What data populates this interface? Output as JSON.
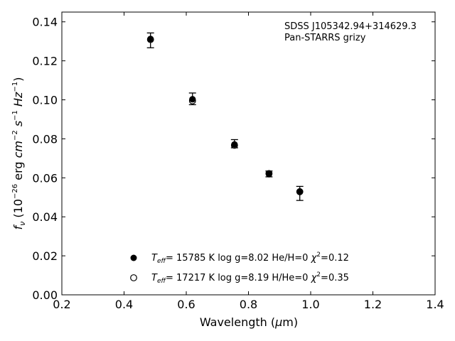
{
  "chart_data": {
    "type": "scatter",
    "xlabel": "Wavelength (μm)",
    "ylabel": "f_ν (10^-26 erg cm^-2 s^-1 Hz^-1)",
    "xlim": [
      0.2,
      1.4
    ],
    "ylim": [
      0.0,
      0.145
    ],
    "xticks": [
      "0.2",
      "0.4",
      "0.6",
      "0.8",
      "1.0",
      "1.2",
      "1.4"
    ],
    "yticks": [
      "0.00",
      "0.02",
      "0.04",
      "0.06",
      "0.08",
      "0.10",
      "0.12",
      "0.14"
    ],
    "annotation": [
      "SDSS J105342.94+314629.3",
      "Pan-STARRS grizy"
    ],
    "observed": {
      "x": [
        0.485,
        0.62,
        0.755,
        0.866,
        0.965
      ],
      "y": [
        0.1305,
        0.1005,
        0.0775,
        0.062,
        0.052
      ],
      "err": [
        0.0038,
        0.003,
        0.0021,
        0.0015,
        0.0036
      ]
    },
    "series": [
      {
        "name": "T_eff= 15785 K  log g=8.02  He/H=0  χ²=0.12",
        "marker": "filled-circle",
        "x": [
          0.485,
          0.62,
          0.755,
          0.866,
          0.965
        ],
        "y": [
          0.1312,
          0.1003,
          0.0771,
          0.0619,
          0.0528
        ]
      },
      {
        "name": "T_eff= 17217 K  log g=8.19  H/He=0  χ²=0.35",
        "marker": "open-circle",
        "x": [
          0.485,
          0.62,
          0.755,
          0.866,
          0.965
        ],
        "y": [
          0.1309,
          0.0995,
          0.0767,
          0.0622,
          0.0529
        ]
      }
    ],
    "legend": [
      {
        "teff": "15785 K",
        "rest": "log g=8.02  He/H=0",
        "chi2": "0.12"
      },
      {
        "teff": "17217 K",
        "rest": "log g=8.19  H/He=0",
        "chi2": "0.35"
      }
    ],
    "legend_position": "bottom-center",
    "grid": false
  }
}
